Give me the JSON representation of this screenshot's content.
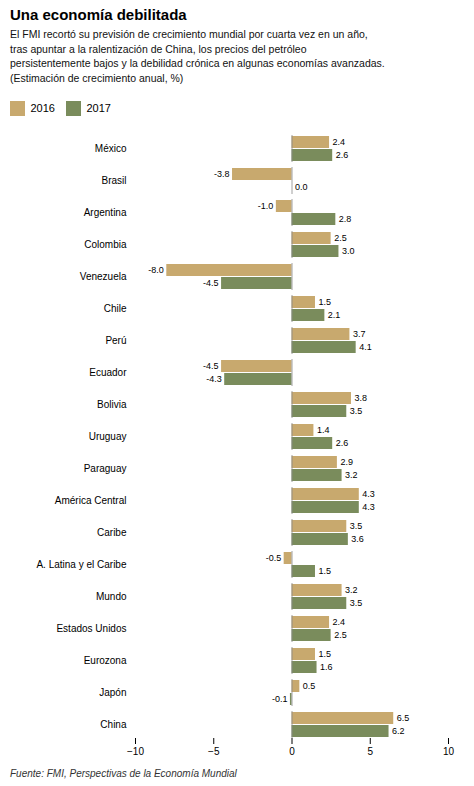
{
  "chart_data": {
    "type": "bar",
    "orientation": "horizontal",
    "title": "Una economía debilitada",
    "subtitle": "El FMI recortó su previsión de crecimiento mundial por cuarta vez en un año,\ntras apuntar a la ralentización de China, los precios del petróleo\npersistentemente bajos y la debilidad crónica en algunas economías avanzadas.\n(Estimación de crecimiento anual, %)",
    "caption": "Fuente: FMI, Perspectivas de la Economía Mundial",
    "categories": [
      "México",
      "Brasil",
      "Argentina",
      "Colombia",
      "Venezuela",
      "Chile",
      "Perú",
      "Ecuador",
      "Bolivia",
      "Uruguay",
      "Paraguay",
      "América Central",
      "Caribe",
      "A. Latina y el Caribe",
      "Mundo",
      "Estados Unidos",
      "Eurozona",
      "Japón",
      "China"
    ],
    "series": [
      {
        "name": "2016",
        "color": "#C8A96E",
        "values": [
          2.4,
          -3.8,
          -1.0,
          2.5,
          -8.0,
          1.5,
          3.7,
          -4.5,
          3.8,
          1.4,
          2.9,
          4.3,
          3.5,
          -0.5,
          3.2,
          2.4,
          1.5,
          0.5,
          6.5
        ],
        "value_labels": [
          "2.4",
          "-3.8",
          "-1.0",
          "2.5",
          "-8.0",
          "1.5",
          "3.7",
          "-4.5",
          "3.8",
          "1.4",
          "2.9",
          "4.3",
          "3.5",
          "-0.5",
          "3.2",
          "2.4",
          "1.5",
          "0.5",
          "6.5"
        ]
      },
      {
        "name": "2017",
        "color": "#7A8C5C",
        "values": [
          2.6,
          0.0,
          2.8,
          3.0,
          -4.5,
          2.1,
          4.1,
          -4.3,
          3.5,
          2.6,
          3.2,
          4.3,
          3.6,
          1.5,
          3.5,
          2.5,
          1.6,
          -0.1,
          6.2
        ],
        "value_labels": [
          "2.6",
          "0.0",
          "2.8",
          "3.0",
          "-4.5",
          "2.1",
          "4.1",
          "-4.3",
          "3.5",
          "2.6",
          "3.2",
          "4.3",
          "3.6",
          "1.5",
          "3.5",
          "2.5",
          "1.6",
          "-0.1",
          "6.2"
        ]
      }
    ],
    "xlim": [
      -10,
      10
    ],
    "xticks": [
      -10,
      -5,
      0,
      5,
      10
    ],
    "grid": false,
    "legend": "top left",
    "data_labels": true
  }
}
